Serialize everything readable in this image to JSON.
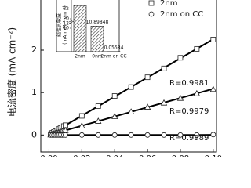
{
  "chart_data": {
    "type": "scatter",
    "ylabel": "电流密度 (mA cm⁻²)",
    "x": [
      0.001,
      0.002,
      0.003,
      0.004,
      0.005,
      0.006,
      0.007,
      0.008,
      0.009,
      0.01,
      0.02,
      0.03,
      0.04,
      0.05,
      0.06,
      0.07,
      0.08,
      0.09,
      0.1
    ],
    "series": [
      {
        "name": "2nm",
        "marker": "square",
        "color": "#222222",
        "values": [
          0.02,
          0.05,
          0.07,
          0.09,
          0.11,
          0.14,
          0.16,
          0.18,
          0.21,
          0.23,
          0.45,
          0.68,
          0.92,
          1.13,
          1.36,
          1.57,
          1.82,
          2.03,
          2.25
        ]
      },
      {
        "name": null,
        "marker": "triangle",
        "color": "#222222",
        "values": [
          0.01,
          0.02,
          0.03,
          0.04,
          0.05,
          0.06,
          0.08,
          0.09,
          0.1,
          0.11,
          0.22,
          0.33,
          0.44,
          0.55,
          0.66,
          0.76,
          0.87,
          0.98,
          1.08
        ]
      },
      {
        "name": "2nm on CC",
        "marker": "circle",
        "color": "#222222",
        "values": [
          0,
          0,
          0,
          0,
          0,
          0,
          0,
          0,
          0,
          0,
          0,
          0,
          0,
          0,
          0,
          0,
          0,
          0,
          0.01
        ]
      }
    ],
    "fit_lines": true,
    "annotations": [
      "R=0.9981",
      "R=0.9979",
      "R=0.9989"
    ],
    "xlim": [
      -0.005,
      0.102
    ],
    "ylim": [
      -0.4,
      3.2
    ],
    "xticks": [
      {
        "value": 0,
        "label": "0.00"
      },
      0.02,
      0.04,
      0.06,
      0.08,
      {
        "value": 0.1,
        "label": "0.10"
      }
    ],
    "yticks": [
      0,
      1,
      2
    ],
    "legend": "top-right",
    "inset": {
      "type": "bar",
      "ylabel": [
        "线性灵敏度",
        "(mA mM⁻¹ cm⁻²)"
      ],
      "categories": [
        "2nm",
        "0nm",
        "2nm on CC"
      ],
      "values": [
        22.7,
        10.89848,
        0.05584
      ],
      "value_labels": [
        null,
        "10.89848",
        "0.05584"
      ],
      "ylim": [
        0,
        24
      ],
      "break": [
        12,
        20
      ],
      "yticks": [
        10,
        12,
        20,
        22
      ],
      "hatch": true
    }
  }
}
